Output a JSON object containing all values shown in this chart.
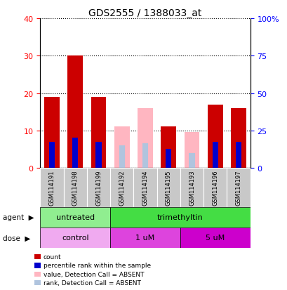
{
  "title": "GDS2555 / 1388033_at",
  "samples": [
    "GSM114191",
    "GSM114198",
    "GSM114199",
    "GSM114192",
    "GSM114194",
    "GSM114195",
    "GSM114193",
    "GSM114196",
    "GSM114197"
  ],
  "red_count": [
    19,
    30,
    19,
    0,
    0,
    11,
    0,
    17,
    16
  ],
  "blue_rank": [
    7,
    8,
    7,
    0,
    0,
    5,
    0,
    7,
    7
  ],
  "pink_absent_value": [
    0,
    0,
    0,
    11,
    16,
    0,
    9.5,
    0,
    0
  ],
  "lightblue_absent_rank": [
    0,
    0,
    0,
    6,
    6.5,
    0,
    4,
    0,
    0
  ],
  "absent": [
    false,
    false,
    false,
    true,
    true,
    false,
    true,
    false,
    false
  ],
  "ylim_left": [
    0,
    40
  ],
  "ylim_right": [
    0,
    100
  ],
  "yticks_left": [
    0,
    10,
    20,
    30,
    40
  ],
  "yticks_right": [
    0,
    25,
    50,
    75,
    100
  ],
  "yticklabels_right": [
    "0",
    "25",
    "50",
    "75",
    "100%"
  ],
  "red_color": "#cc0000",
  "blue_color": "#0000cc",
  "pink_color": "#ffb6c1",
  "lightblue_color": "#b0c4de",
  "agent_green_light": "#90ee90",
  "agent_green_bright": "#44cc44",
  "dose_color_light": "#f0b0f0",
  "dose_color_mid": "#dd44dd",
  "dose_color_dark": "#cc00cc",
  "bar_width": 0.65,
  "sample_bg": "#c8c8c8"
}
